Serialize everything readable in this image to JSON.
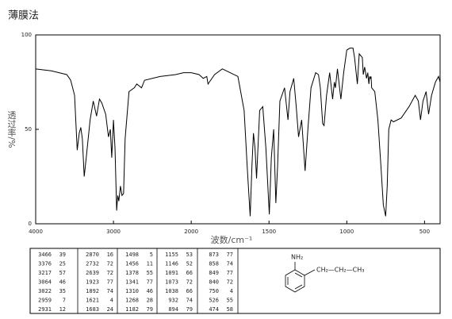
{
  "chart_data": {
    "type": "line",
    "title": "薄膜法",
    "x_label": "波数/cm⁻¹",
    "y_label": "透过率/%",
    "xlim": [
      4000,
      400
    ],
    "xbreak": 2000,
    "ylim": [
      0,
      100
    ],
    "xticks": [
      4000,
      3000,
      2000,
      1500,
      1000,
      500
    ],
    "yticks": [
      0,
      50,
      100
    ],
    "color": "#000000",
    "x": [
      4000,
      3800,
      3700,
      3600,
      3550,
      3500,
      3466,
      3440,
      3420,
      3400,
      3376,
      3350,
      3300,
      3260,
      3217,
      3180,
      3150,
      3100,
      3064,
      3040,
      3022,
      3000,
      2980,
      2959,
      2945,
      2931,
      2910,
      2890,
      2870,
      2850,
      2800,
      2732,
      2700,
      2639,
      2600,
      2400,
      2200,
      2100,
      2000,
      1950,
      1923,
      1900,
      1892,
      1850,
      1800,
      1750,
      1700,
      1660,
      1640,
      1621,
      1610,
      1600,
      1590,
      1580,
      1560,
      1540,
      1520,
      1498,
      1485,
      1470,
      1456,
      1445,
      1430,
      1400,
      1378,
      1365,
      1341,
      1325,
      1310,
      1290,
      1268,
      1250,
      1230,
      1200,
      1182,
      1170,
      1155,
      1146,
      1130,
      1110,
      1091,
      1080,
      1073,
      1060,
      1038,
      1020,
      1000,
      980,
      960,
      950,
      932,
      920,
      900,
      894,
      885,
      873,
      865,
      858,
      853,
      849,
      844,
      840,
      820,
      800,
      780,
      765,
      750,
      740,
      730,
      715,
      700,
      650,
      600,
      560,
      540,
      526,
      510,
      490,
      474,
      455,
      430,
      410,
      400
    ],
    "values": [
      82,
      81,
      80,
      79,
      76,
      68,
      39,
      48,
      51,
      45,
      25,
      35,
      55,
      65,
      57,
      66,
      64,
      58,
      46,
      50,
      35,
      55,
      40,
      7,
      15,
      12,
      20,
      15,
      16,
      45,
      70,
      72,
      74,
      72,
      76,
      78,
      79,
      80,
      80,
      79,
      77,
      78,
      74,
      79,
      82,
      80,
      78,
      60,
      30,
      4,
      30,
      48,
      40,
      24,
      60,
      62,
      40,
      5,
      35,
      50,
      11,
      30,
      65,
      72,
      55,
      70,
      77,
      62,
      46,
      55,
      28,
      50,
      72,
      80,
      79,
      72,
      53,
      52,
      68,
      80,
      66,
      75,
      72,
      82,
      66,
      80,
      92,
      93,
      93,
      88,
      74,
      90,
      88,
      79,
      83,
      77,
      80,
      74,
      78,
      77,
      78,
      72,
      70,
      55,
      30,
      10,
      4,
      20,
      50,
      55,
      54,
      56,
      62,
      68,
      65,
      55,
      65,
      70,
      58,
      68,
      75,
      78,
      75
    ]
  },
  "table": {
    "columns": [
      [
        [
          "3466",
          "39"
        ],
        [
          "3376",
          "25"
        ],
        [
          "3217",
          "57"
        ],
        [
          "3064",
          "46"
        ],
        [
          "3022",
          "35"
        ],
        [
          "2959",
          "7"
        ],
        [
          "2931",
          "12"
        ]
      ],
      [
        [
          "2870",
          "16"
        ],
        [
          "2732",
          "72"
        ],
        [
          "2639",
          "72"
        ],
        [
          "1923",
          "77"
        ],
        [
          "1892",
          "74"
        ],
        [
          "1621",
          "4"
        ],
        [
          "1683",
          "24"
        ]
      ],
      [
        [
          "1498",
          "5"
        ],
        [
          "1456",
          "11"
        ],
        [
          "1378",
          "55"
        ],
        [
          "1341",
          "77"
        ],
        [
          "1310",
          "46"
        ],
        [
          "1268",
          "28"
        ],
        [
          "1182",
          "79"
        ]
      ],
      [
        [
          "1155",
          "53"
        ],
        [
          "1146",
          "52"
        ],
        [
          "1091",
          "66"
        ],
        [
          "1073",
          "72"
        ],
        [
          "1038",
          "66"
        ],
        [
          "932",
          "74"
        ],
        [
          "894",
          "79"
        ]
      ],
      [
        [
          "873",
          "77"
        ],
        [
          "858",
          "74"
        ],
        [
          "849",
          "77"
        ],
        [
          "840",
          "72"
        ],
        [
          "750",
          "4"
        ],
        [
          "526",
          "55"
        ],
        [
          "474",
          "58"
        ]
      ]
    ]
  },
  "structure": {
    "amine": "NH₂",
    "chain": "CH₂—CH₂—CH₃"
  }
}
